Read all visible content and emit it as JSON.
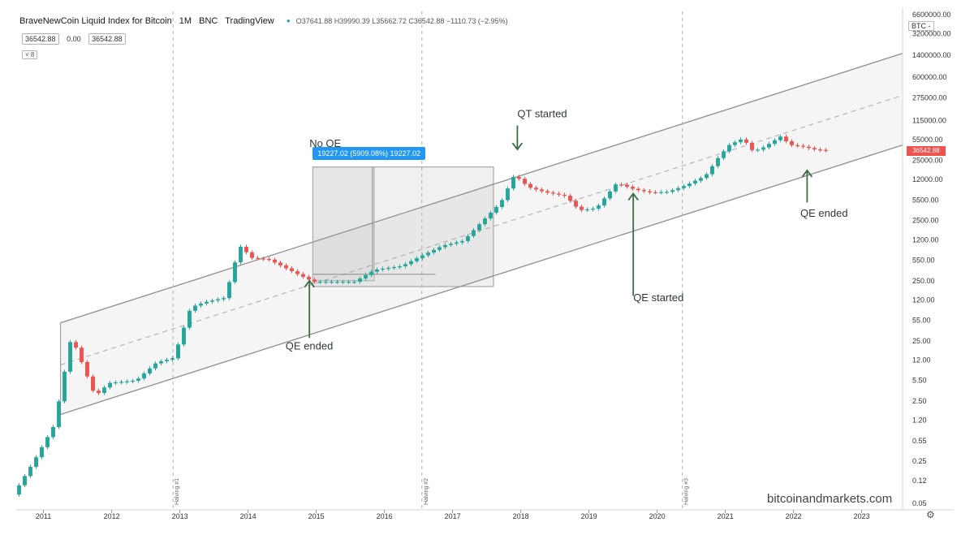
{
  "header": {
    "title": "BraveNewCoin Liquid Index for Bitcoin",
    "interval": "1M",
    "exchange": "BNC",
    "source": "TradingView",
    "ohlc": "O37641.88 H39990.39 L35662.72 C36542.88 −1110.73 (−2.95%)",
    "box_left": "36542.88",
    "box_mid": "0.00",
    "box_right": "36542.88",
    "indicator_toggle": "˅ 8",
    "currency": "BTC -"
  },
  "price_tag": "36542.88",
  "watermark": "bitcoinandmarkets.com",
  "settings_icon": "gear-icon",
  "measure": {
    "label": "19227.02 (5909.08%) 19227.02"
  },
  "colors": {
    "up": "#26a69a",
    "down": "#ef5350",
    "channel_fill": "#ececec",
    "channel_line": "#8e8e8e",
    "annotation_arrow": "#3e6b47",
    "measure_blue": "#2196f3"
  },
  "chart_data": {
    "type": "candlestick",
    "title": "BraveNewCoin Liquid Index for Bitcoin",
    "y_scale": "log",
    "y_ticks": [
      "6600000.00",
      "3200000.00",
      "1400000.00",
      "600000.00",
      "275000.00",
      "115000.00",
      "55000.00",
      "25000.00",
      "12000.00",
      "5500.00",
      "2500.00",
      "1200.00",
      "550.00",
      "250.00",
      "120.00",
      "55.00",
      "25.00",
      "12.00",
      "5.50",
      "2.50",
      "1.20",
      "0.55",
      "0.25",
      "0.12",
      "0.05"
    ],
    "y_tick_values": [
      6600000,
      3200000,
      1400000,
      600000,
      275000,
      115000,
      55000,
      25000,
      12000,
      5500,
      2500,
      1200,
      550,
      250,
      120,
      55,
      25,
      12,
      5.5,
      2.5,
      1.2,
      0.55,
      0.25,
      0.12,
      0.05
    ],
    "x_ticks": [
      "2011",
      "2012",
      "2013",
      "2014",
      "2015",
      "2016",
      "2017",
      "2018",
      "2019",
      "2020",
      "2021",
      "2022",
      "2023"
    ],
    "x_range": [
      2010.6,
      2023.6
    ],
    "grid": false,
    "candle_anchors": [
      [
        2010.6,
        0.07
      ],
      [
        2010.9,
        0.25
      ],
      [
        2011.2,
        1.0
      ],
      [
        2011.45,
        30
      ],
      [
        2011.65,
        8
      ],
      [
        2011.8,
        3
      ],
      [
        2012.0,
        5
      ],
      [
        2012.4,
        5.5
      ],
      [
        2012.7,
        11
      ],
      [
        2012.95,
        13
      ],
      [
        2013.2,
        90
      ],
      [
        2013.4,
        110
      ],
      [
        2013.7,
        130
      ],
      [
        2013.92,
        950
      ],
      [
        2014.1,
        600
      ],
      [
        2014.35,
        560
      ],
      [
        2014.75,
        330
      ],
      [
        2015.0,
        240
      ],
      [
        2015.25,
        240
      ],
      [
        2015.6,
        240
      ],
      [
        2015.9,
        380
      ],
      [
        2016.3,
        440
      ],
      [
        2016.55,
        620
      ],
      [
        2016.9,
        960
      ],
      [
        2017.2,
        1150
      ],
      [
        2017.5,
        2600
      ],
      [
        2017.75,
        5000
      ],
      [
        2017.95,
        14500
      ],
      [
        2018.15,
        9000
      ],
      [
        2018.4,
        7400
      ],
      [
        2018.7,
        6400
      ],
      [
        2018.9,
        3700
      ],
      [
        2019.15,
        4000
      ],
      [
        2019.45,
        10500
      ],
      [
        2019.7,
        8300
      ],
      [
        2019.95,
        7300
      ],
      [
        2020.2,
        7500
      ],
      [
        2020.45,
        9500
      ],
      [
        2020.75,
        13800
      ],
      [
        2020.95,
        29000
      ],
      [
        2021.1,
        45000
      ],
      [
        2021.3,
        58000
      ],
      [
        2021.45,
        35000
      ],
      [
        2021.6,
        41000
      ],
      [
        2021.85,
        62000
      ],
      [
        2022.0,
        45000
      ],
      [
        2022.15,
        43000
      ],
      [
        2022.35,
        38000
      ],
      [
        2022.5,
        36542.88
      ]
    ],
    "channel": {
      "upper": [
        [
          2011.25,
          50
        ],
        [
          2023.6,
          1500000
        ]
      ],
      "mid": [
        [
          2011.25,
          10
        ],
        [
          2023.6,
          300000
        ]
      ],
      "lower": [
        [
          2011.25,
          1.5
        ],
        [
          2023.6,
          45000
        ]
      ]
    },
    "measure_box": {
      "x": [
        2014.95,
        2017.6
      ],
      "y": [
        200,
        19400
      ]
    },
    "halvings": [
      {
        "x": 2012.9,
        "label": "Halving #1"
      },
      {
        "x": 2016.55,
        "label": "Halving #2"
      },
      {
        "x": 2020.37,
        "label": "Halving #3"
      }
    ],
    "annotations": [
      {
        "text": "No QE",
        "x": 2014.9,
        "y": 42000
      },
      {
        "text": "QT started",
        "x": 2017.95,
        "y": 130000
      },
      {
        "text": "QE ended",
        "x": 2014.55,
        "y": 18
      },
      {
        "text": "QE started",
        "x": 2019.65,
        "y": 115
      },
      {
        "text": "QE ended",
        "x": 2022.1,
        "y": 2900
      }
    ]
  }
}
